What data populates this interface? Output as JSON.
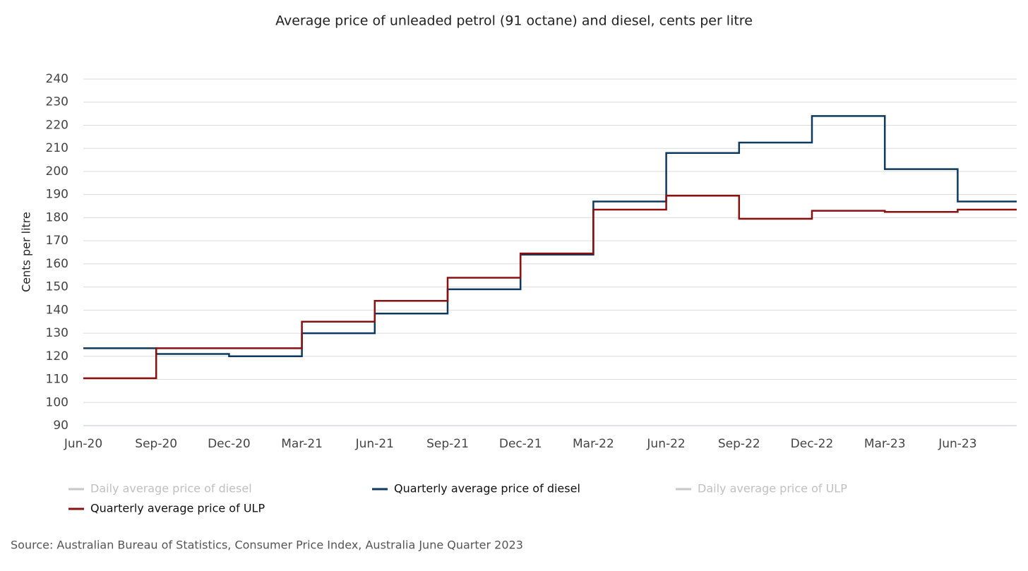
{
  "chart_data": {
    "type": "step",
    "title": "Average price of unleaded petrol (91 octane) and diesel, cents per litre",
    "y_label": "Cents per litre",
    "source": "Source: Australian Bureau of Statistics, Consumer Price Index, Australia June Quarter 2023",
    "categories": [
      "Jun-20",
      "Sep-20",
      "Dec-20",
      "Mar-21",
      "Jun-21",
      "Sep-21",
      "Dec-21",
      "Mar-22",
      "Jun-22",
      "Sep-22",
      "Dec-22",
      "Mar-23",
      "Jun-23"
    ],
    "series": [
      {
        "name": "Daily average price of diesel",
        "color": "#c8c8c8",
        "visible": false
      },
      {
        "name": "Quarterly average price of diesel",
        "color": "#0e3a5f",
        "visible": true,
        "values": [
          123.5,
          121,
          120,
          130,
          138.5,
          149,
          164,
          187,
          208,
          212.5,
          224,
          201,
          187
        ]
      },
      {
        "name": "Daily average price of ULP",
        "color": "#c8c8c8",
        "visible": false
      },
      {
        "name": "Quarterly average price of ULP",
        "color": "#8b1010",
        "visible": true,
        "values": [
          110.5,
          123.5,
          123.5,
          135,
          144,
          154,
          164.5,
          183.5,
          189.5,
          179.5,
          183,
          182.5,
          183.5
        ]
      }
    ],
    "ylim": [
      90,
      240
    ],
    "yticks": [
      90,
      100,
      110,
      120,
      130,
      140,
      150,
      160,
      170,
      180,
      190,
      200,
      210,
      220,
      230,
      240
    ],
    "grid": true
  }
}
